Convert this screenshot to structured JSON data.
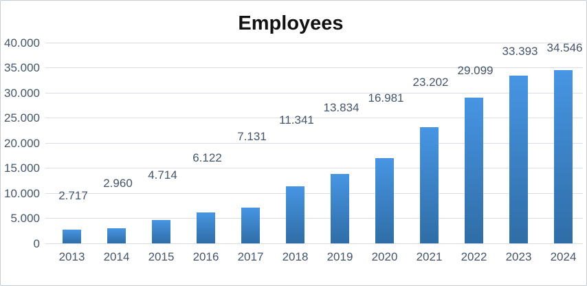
{
  "chart_data": {
    "type": "bar",
    "title": "Employees",
    "categories": [
      "2013",
      "2014",
      "2015",
      "2016",
      "2017",
      "2018",
      "2019",
      "2020",
      "2021",
      "2022",
      "2023",
      "2024"
    ],
    "values": [
      2717,
      2960,
      4714,
      6122,
      7131,
      11341,
      13834,
      16981,
      23202,
      29099,
      33393,
      34546
    ],
    "value_labels": [
      "2.717",
      "2.960",
      "4.714",
      "6.122",
      "7.131",
      "11.341",
      "13.834",
      "16.981",
      "23.202",
      "29.099",
      "33.393",
      "34.546"
    ],
    "series_name": "Employees",
    "xlabel": "",
    "ylabel": "",
    "y_axis": {
      "min": 0,
      "max": 40000,
      "step": 5000,
      "tick_labels": [
        "0",
        "5.000",
        "10.000",
        "15.000",
        "20.000",
        "25.000",
        "30.000",
        "35.000",
        "40.000"
      ]
    },
    "grid": true,
    "legend_position": "none",
    "colors": {
      "bar_gradient_top": "#4795e3",
      "bar_gradient_bottom": "#2f6da6",
      "gridline": "#d9dde5",
      "axis_text": "#44546a",
      "data_label_text": "#44546a",
      "title_text": "#111111",
      "chart_border": "#c6ccd6",
      "background": "#ffffff"
    }
  }
}
